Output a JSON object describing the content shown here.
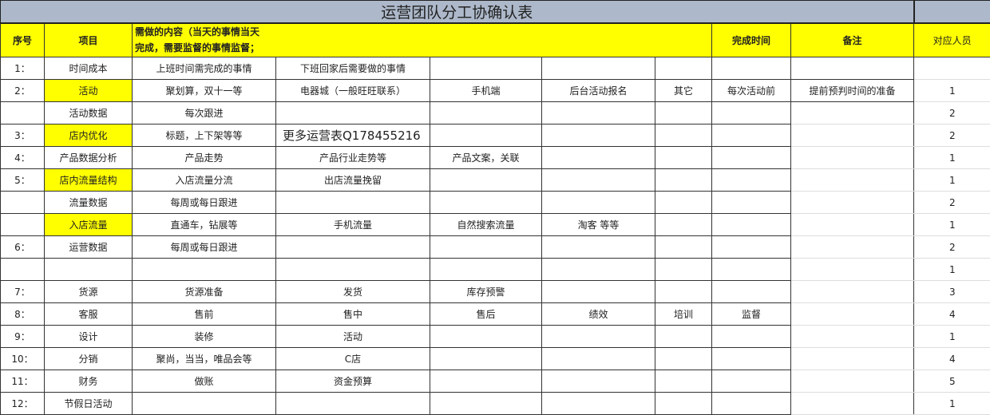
{
  "title": "运营团队分工协确认表",
  "header": {
    "seq": "序号",
    "item": "项目",
    "content": "需做的内容（当天的事情当天完成，需要监督的事情监督；",
    "content_line1": "需做的内容（当天的事情当天",
    "content_line2": "完成，需要监督的事情监督；",
    "done_time": "完成时间",
    "remark": "备注",
    "people": "对应人员"
  },
  "rows": [
    {
      "seq": "1：",
      "item": "时间成本",
      "yellow": false,
      "c": [
        "上班时间需完成的事情",
        "下班回家后需要做的事情",
        "",
        "",
        ""
      ],
      "time": "",
      "remark": "",
      "people": ""
    },
    {
      "seq": "2：",
      "item": "活动",
      "yellow": true,
      "c": [
        "聚划算，双十一等",
        "电器城（一般旺旺联系）",
        "手机端",
        "后台活动报名",
        "其它"
      ],
      "time": "每次活动前",
      "remark": "提前预判时间的准备",
      "people": "1"
    },
    {
      "seq": "",
      "item": "活动数据",
      "yellow": false,
      "c": [
        "每次跟进",
        "",
        "",
        "",
        ""
      ],
      "time": "",
      "remark": "",
      "people": "2"
    },
    {
      "seq": "3：",
      "item": "店内优化",
      "yellow": true,
      "c": [
        "标题，上下架等等",
        "更多运营表Q178455216",
        "",
        "",
        ""
      ],
      "time": "",
      "remark": "",
      "people": "2"
    },
    {
      "seq": "4：",
      "item": "产品数据分析",
      "yellow": false,
      "c": [
        "产品走势",
        "产品行业走势等",
        "产品文案，关联",
        "",
        ""
      ],
      "time": "",
      "remark": "",
      "people": "1"
    },
    {
      "seq": "5：",
      "item": "店内流量结构",
      "yellow": true,
      "c": [
        "入店流量分流",
        "出店流量挽留",
        "",
        "",
        ""
      ],
      "time": "",
      "remark": "",
      "people": "1"
    },
    {
      "seq": "",
      "item": "流量数据",
      "yellow": false,
      "c": [
        "每周或每日跟进",
        "",
        "",
        "",
        ""
      ],
      "time": "",
      "remark": "",
      "people": "2"
    },
    {
      "seq": "",
      "item": "入店流量",
      "yellow": true,
      "c": [
        "直通车，钻展等",
        "手机流量",
        "自然搜索流量",
        "淘客 等等",
        ""
      ],
      "time": "",
      "remark": "",
      "people": "1"
    },
    {
      "seq": "6：",
      "item": "运营数据",
      "yellow": false,
      "c": [
        "每周或每日跟进",
        "",
        "",
        "",
        ""
      ],
      "time": "",
      "remark": "",
      "people": "2"
    },
    {
      "seq": "",
      "item": "",
      "yellow": false,
      "c": [
        "",
        "",
        "",
        "",
        ""
      ],
      "time": "",
      "remark": "",
      "people": "1"
    },
    {
      "seq": "7：",
      "item": "货源",
      "yellow": false,
      "c": [
        "货源准备",
        "发货",
        "库存预警",
        "",
        ""
      ],
      "time": "",
      "remark": "",
      "people": "3"
    },
    {
      "seq": "8：",
      "item": "客服",
      "yellow": false,
      "c": [
        "售前",
        "售中",
        "售后",
        "绩效",
        "培训"
      ],
      "time": "监督",
      "remark": "",
      "people": "4"
    },
    {
      "seq": "9：",
      "item": "设计",
      "yellow": false,
      "c": [
        "装修",
        "活动",
        "",
        "",
        ""
      ],
      "time": "",
      "remark": "",
      "people": "1"
    },
    {
      "seq": "10：",
      "item": "分销",
      "yellow": false,
      "c": [
        "聚尚，当当，唯品会等",
        "C店",
        "",
        "",
        ""
      ],
      "time": "",
      "remark": "",
      "people": "4"
    },
    {
      "seq": "11：",
      "item": "财务",
      "yellow": false,
      "c": [
        "做账",
        "资金预算",
        "",
        "",
        ""
      ],
      "time": "",
      "remark": "",
      "people": "5"
    },
    {
      "seq": "12：",
      "item": "节假日活动",
      "yellow": false,
      "c": [
        "",
        "",
        "",
        "",
        ""
      ],
      "time": "",
      "remark": "",
      "people": "1"
    }
  ],
  "colors": {
    "title_bg": "#adb9ca",
    "highlight": "#ffff00",
    "grid": "#333333"
  }
}
